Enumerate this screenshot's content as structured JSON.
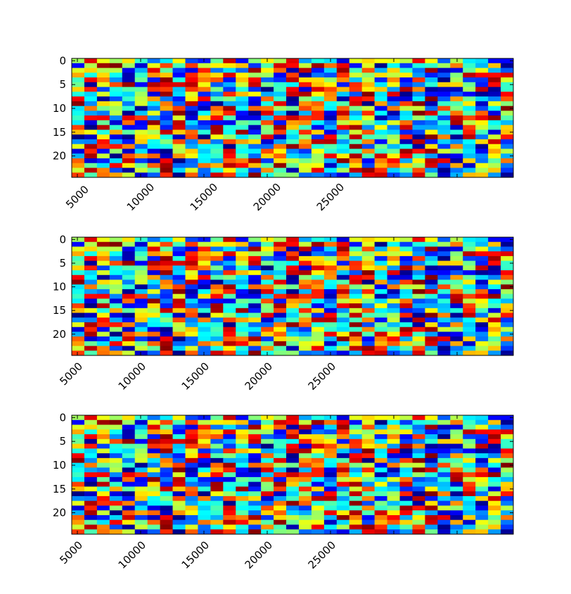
{
  "chart_data": [
    {
      "type": "heatmap",
      "rows": 25,
      "cols": 35,
      "colormap": "jet",
      "y_tick_labels": [
        "0",
        "5",
        "10",
        "15",
        "20"
      ],
      "x_tick_labels": [
        "5000",
        "10000",
        "15000",
        "20000",
        "25000",
        "",
        "",
        ""
      ],
      "x_tick_rotation": 45,
      "x_tick_alignment": "center"
    },
    {
      "type": "heatmap",
      "rows": 25,
      "cols": 35,
      "colormap": "jet",
      "y_tick_labels": [
        "0",
        "5",
        "10",
        "15",
        "20"
      ],
      "x_tick_labels": [
        "5000",
        "10000",
        "15000",
        "20000",
        "25000",
        "",
        "",
        ""
      ],
      "x_tick_rotation": 45,
      "x_tick_alignment": "right"
    },
    {
      "type": "heatmap",
      "rows": 25,
      "cols": 35,
      "colormap": "jet",
      "y_tick_labels": [
        "0",
        "5",
        "10",
        "15",
        "20"
      ],
      "x_tick_labels": [
        "5000",
        "10000",
        "15000",
        "20000",
        "25000",
        "",
        "",
        ""
      ],
      "x_tick_rotation": 45,
      "x_tick_alignment": "right"
    }
  ]
}
